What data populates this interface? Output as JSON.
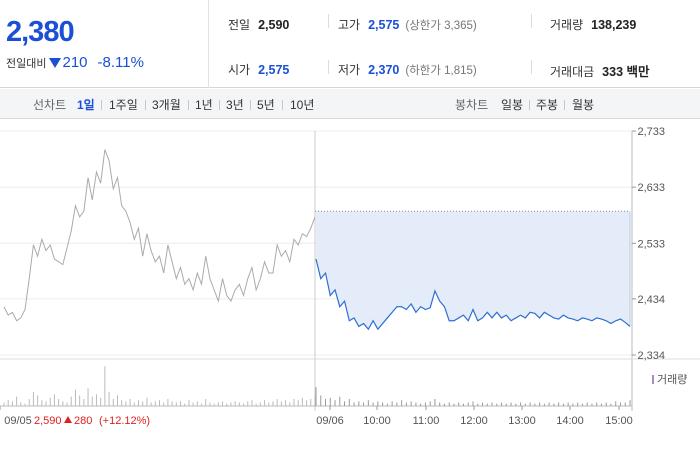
{
  "header": {
    "current_price": "2,380",
    "change_label": "전일대비",
    "change_value": "210",
    "change_pct": "-8.11%",
    "direction_icon": "down-triangle-icon",
    "stats": {
      "prev_close_label": "전일",
      "prev_close": "2,590",
      "high_label": "고가",
      "high": "2,575",
      "upper_limit": "(상한가 3,365)",
      "volume_label": "거래량",
      "volume": "138,239",
      "open_label": "시가",
      "open": "2,575",
      "low_label": "저가",
      "low": "2,370",
      "lower_limit": "(하한가 1,815)",
      "amount_label": "거래대금",
      "amount": "333 백만"
    }
  },
  "tabs": {
    "line_label": "선차트",
    "line_periods": [
      "1일",
      "1주일",
      "3개월",
      "1년",
      "3년",
      "5년",
      "10년"
    ],
    "selected": "1일",
    "candle_label": "봉차트",
    "candle_periods": [
      "일봉",
      "주봉",
      "월봉"
    ]
  },
  "colors": {
    "accent_blue": "#1a4fd8",
    "today_line": "#2e6fd0",
    "today_fill": "#e4ecf9",
    "prev_line": "#aaaaaa",
    "up_red": "#e02020",
    "volume_legend": "#a98bc8"
  },
  "chart_data": {
    "type": "line",
    "y_ticks": [
      "2,733",
      "2,633",
      "2,533",
      "2,434",
      "2,334"
    ],
    "ylim": [
      2334,
      2733
    ],
    "prev_close_ref": 2590,
    "x_labels": [
      "09/05",
      "09/06",
      "10:00",
      "11:00",
      "12:00",
      "13:00",
      "14:00",
      "15:00"
    ],
    "prev_day": {
      "date": "09/05",
      "close": "2,590",
      "change": "280",
      "change_pct": "(+12.12%)",
      "values": [
        2420,
        2405,
        2410,
        2395,
        2400,
        2415,
        2470,
        2530,
        2510,
        2540,
        2520,
        2530,
        2505,
        2500,
        2495,
        2525,
        2555,
        2600,
        2580,
        2590,
        2650,
        2610,
        2660,
        2640,
        2700,
        2680,
        2630,
        2650,
        2600,
        2590,
        2570,
        2540,
        2560,
        2510,
        2550,
        2520,
        2500,
        2510,
        2480,
        2530,
        2500,
        2470,
        2490,
        2460,
        2470,
        2450,
        2480,
        2460,
        2510,
        2470,
        2450,
        2430,
        2470,
        2440,
        2430,
        2450,
        2460,
        2440,
        2470,
        2490,
        2450,
        2470,
        2500,
        2480,
        2480,
        2530,
        2510,
        2520,
        2500,
        2540,
        2530,
        2550,
        2545,
        2560,
        2580
      ]
    },
    "today": {
      "date": "09/06",
      "values": [
        2505,
        2470,
        2480,
        2440,
        2450,
        2420,
        2430,
        2395,
        2400,
        2385,
        2390,
        2380,
        2395,
        2380,
        2390,
        2400,
        2410,
        2420,
        2420,
        2415,
        2425,
        2410,
        2420,
        2415,
        2418,
        2448,
        2430,
        2420,
        2395,
        2395,
        2400,
        2405,
        2395,
        2415,
        2395,
        2400,
        2410,
        2400,
        2410,
        2400,
        2405,
        2395,
        2400,
        2405,
        2400,
        2410,
        2408,
        2400,
        2410,
        2405,
        2400,
        2398,
        2405,
        2400,
        2398,
        2395,
        2400,
        2398,
        2395,
        2400,
        2398,
        2395,
        2390,
        2395,
        2398,
        2392,
        2385
      ]
    },
    "volume_legend": "거래량",
    "volume_prev": [
      3,
      5,
      4,
      8,
      3,
      2,
      6,
      12,
      9,
      5,
      4,
      7,
      10,
      6,
      4,
      3,
      8,
      14,
      9,
      6,
      15,
      8,
      10,
      7,
      34,
      12,
      6,
      9,
      5,
      4,
      6,
      3,
      5,
      4,
      7,
      3,
      4,
      5,
      3,
      6,
      4,
      3,
      4,
      2,
      5,
      3,
      4,
      2,
      6,
      3,
      2,
      3,
      4,
      2,
      3,
      4,
      3,
      2,
      4,
      5,
      2,
      3,
      5,
      3,
      4,
      6,
      4,
      5,
      3,
      6,
      5,
      7,
      5,
      6,
      9
    ],
    "volume_today": [
      16,
      9,
      6,
      7,
      5,
      8,
      4,
      6,
      3,
      4,
      3,
      5,
      3,
      4,
      3,
      2,
      4,
      3,
      5,
      3,
      4,
      3,
      2,
      3,
      4,
      6,
      3,
      2,
      3,
      2,
      3,
      2,
      3,
      4,
      2,
      3,
      2,
      3,
      2,
      3,
      2,
      3,
      2,
      3,
      2,
      3,
      2,
      3,
      2,
      3,
      2,
      3,
      2,
      3,
      2,
      3,
      2,
      3,
      2,
      3,
      2,
      3,
      2,
      4,
      3,
      3,
      5
    ]
  }
}
